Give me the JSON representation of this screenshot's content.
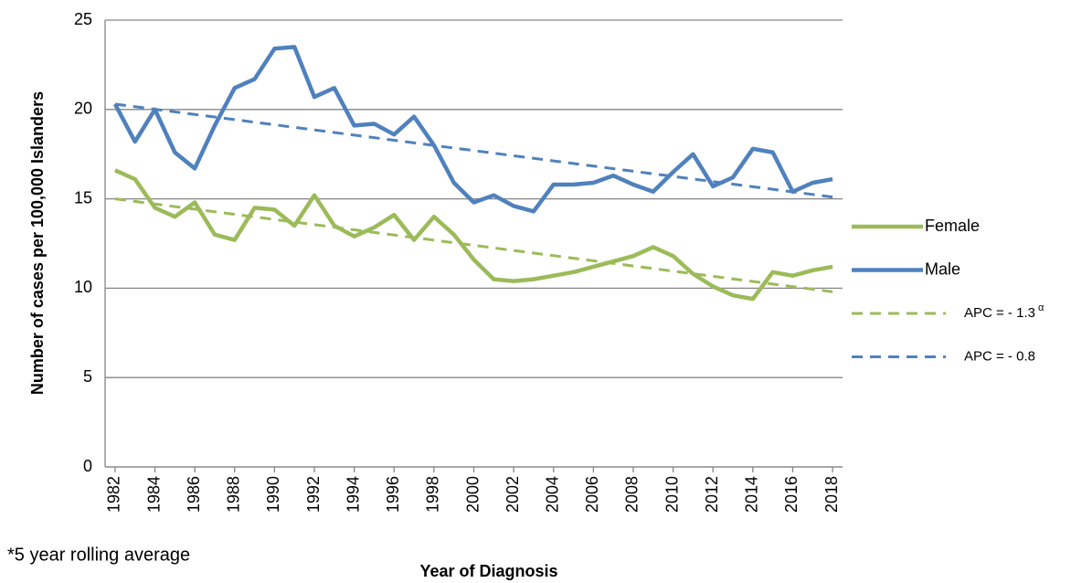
{
  "chart_data": {
    "type": "line",
    "y_axis_label": "Number of cases per 100,000 Islanders",
    "x_axis_label": "Year of Diagnosis",
    "footnote": "*5 year rolling average",
    "x": [
      1982,
      1983,
      1984,
      1985,
      1986,
      1987,
      1988,
      1989,
      1990,
      1991,
      1992,
      1993,
      1994,
      1995,
      1996,
      1997,
      1998,
      1999,
      2000,
      2001,
      2002,
      2003,
      2004,
      2005,
      2006,
      2007,
      2008,
      2009,
      2010,
      2011,
      2012,
      2013,
      2014,
      2015,
      2016,
      2017,
      2018
    ],
    "xlim": [
      1981.5,
      2018.5
    ],
    "xticks": [
      1982,
      1984,
      1986,
      1988,
      1990,
      1992,
      1994,
      1996,
      1998,
      2000,
      2002,
      2004,
      2006,
      2008,
      2010,
      2012,
      2014,
      2016,
      2018
    ],
    "ylim": [
      0,
      25
    ],
    "yticks": [
      0,
      5,
      10,
      15,
      20,
      25
    ],
    "grid": true,
    "legend": "right",
    "series": [
      {
        "name": "Female",
        "color": "#9bbb59",
        "style": "solid",
        "values": [
          16.6,
          16.1,
          14.5,
          14.0,
          14.8,
          13.0,
          12.7,
          14.5,
          14.4,
          13.5,
          15.2,
          13.5,
          12.9,
          13.4,
          14.1,
          12.7,
          14.0,
          13.0,
          11.6,
          10.5,
          10.4,
          10.5,
          10.7,
          10.9,
          11.2,
          11.5,
          11.8,
          12.3,
          11.8,
          10.8,
          10.1,
          9.6,
          9.4,
          10.9,
          10.7,
          11.0,
          11.2
        ]
      },
      {
        "name": "Male",
        "color": "#4f81bd",
        "style": "solid",
        "values": [
          20.3,
          18.2,
          20.0,
          17.6,
          16.7,
          19.1,
          21.2,
          21.7,
          23.4,
          23.5,
          20.7,
          21.2,
          19.1,
          19.2,
          18.6,
          19.6,
          18.0,
          15.9,
          14.8,
          15.2,
          14.6,
          14.3,
          15.8,
          15.8,
          15.9,
          16.3,
          15.8,
          15.4,
          16.5,
          17.5,
          15.7,
          16.2,
          17.8,
          17.6,
          15.4,
          15.9,
          16.1
        ]
      },
      {
        "name": "APC = - 1.3",
        "superscript": "α",
        "color": "#9bbb59",
        "style": "dashed",
        "x": [
          1982,
          2018
        ],
        "values": [
          15.0,
          9.8
        ]
      },
      {
        "name": "APC = - 0.8",
        "color": "#4f81bd",
        "style": "dashed",
        "x": [
          1982,
          2018
        ],
        "values": [
          20.3,
          15.1
        ]
      }
    ]
  }
}
